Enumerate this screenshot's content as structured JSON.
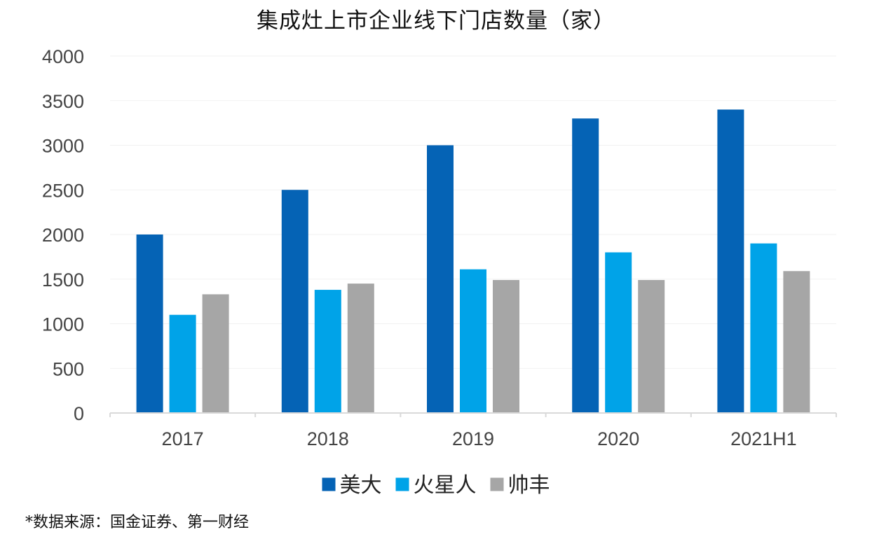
{
  "chart_data": {
    "type": "bar",
    "title": "集成灶上市企业线下门店数量（家）",
    "categories": [
      "2017",
      "2018",
      "2019",
      "2020",
      "2021H1"
    ],
    "series": [
      {
        "name": "美大",
        "color": "#0563B5",
        "values": [
          2000,
          2500,
          3000,
          3300,
          3400
        ]
      },
      {
        "name": "火星人",
        "color": "#00A3E8",
        "values": [
          1100,
          1380,
          1610,
          1800,
          1900
        ]
      },
      {
        "name": "帅丰",
        "color": "#A6A6A6",
        "values": [
          1330,
          1450,
          1490,
          1490,
          1590
        ]
      }
    ],
    "ylim": [
      0,
      4000
    ],
    "yticks": [
      0,
      500,
      1000,
      1500,
      2000,
      2500,
      3000,
      3500,
      4000
    ],
    "grid": true,
    "legend_position": "bottom"
  },
  "source_note": "*数据来源：国金证券、第一财经"
}
